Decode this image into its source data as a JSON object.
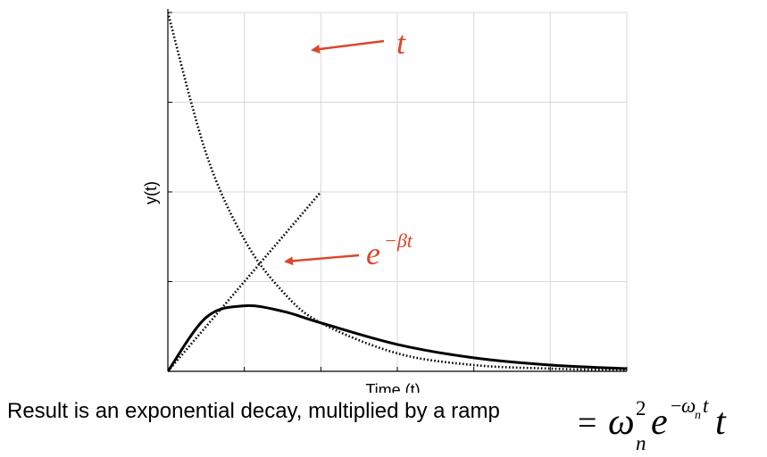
{
  "chart_data": {
    "type": "line",
    "title": "",
    "xlabel": "Time (t)",
    "ylabel": "y(t)",
    "xlim": [
      0,
      6
    ],
    "ylim": [
      0,
      4
    ],
    "grid": true,
    "series": [
      {
        "name": "t",
        "style": "dotted",
        "x": [
          0,
          0.5,
          1.0,
          1.5,
          2.0
        ],
        "values": [
          0.0,
          0.5,
          1.0,
          1.5,
          2.0
        ]
      },
      {
        "name": "e^{-βt}",
        "style": "dotted",
        "x": [
          0.0,
          0.5,
          1.0,
          1.5,
          2.0,
          3.0,
          4.0,
          5.0,
          6.0
        ],
        "values": [
          4.0,
          2.43,
          1.47,
          0.89,
          0.54,
          0.2,
          0.07,
          0.03,
          0.01
        ]
      },
      {
        "name": "ω_n² e^{-ω_n t} t",
        "style": "solid",
        "x": [
          0.0,
          0.5,
          1.0,
          1.5,
          2.0,
          3.0,
          4.0,
          5.0,
          6.0
        ],
        "values": [
          0.0,
          0.6,
          0.73,
          0.67,
          0.54,
          0.3,
          0.15,
          0.07,
          0.03
        ]
      }
    ],
    "annotations": [
      {
        "text": "t",
        "target_series": "t",
        "color": "#D9472B"
      },
      {
        "text": "e",
        "superscript": "−βt",
        "target_series": "e^{-βt}",
        "color": "#D9472B"
      }
    ]
  },
  "caption": {
    "text": "Result is an exponential decay, multiplied by a ramp",
    "eq_equals": "=",
    "eq_omega": "ω",
    "eq_sup2": "2",
    "eq_sub_n": "n",
    "eq_e": "e",
    "eq_exp_minus": "−",
    "eq_exp_omega": "ω",
    "eq_exp_sub_n": "n",
    "eq_exp_t": "t",
    "eq_t": "t"
  },
  "colors": {
    "annotation": "#D9472B",
    "grid": "#d9d9d9",
    "axis": "#000000"
  }
}
